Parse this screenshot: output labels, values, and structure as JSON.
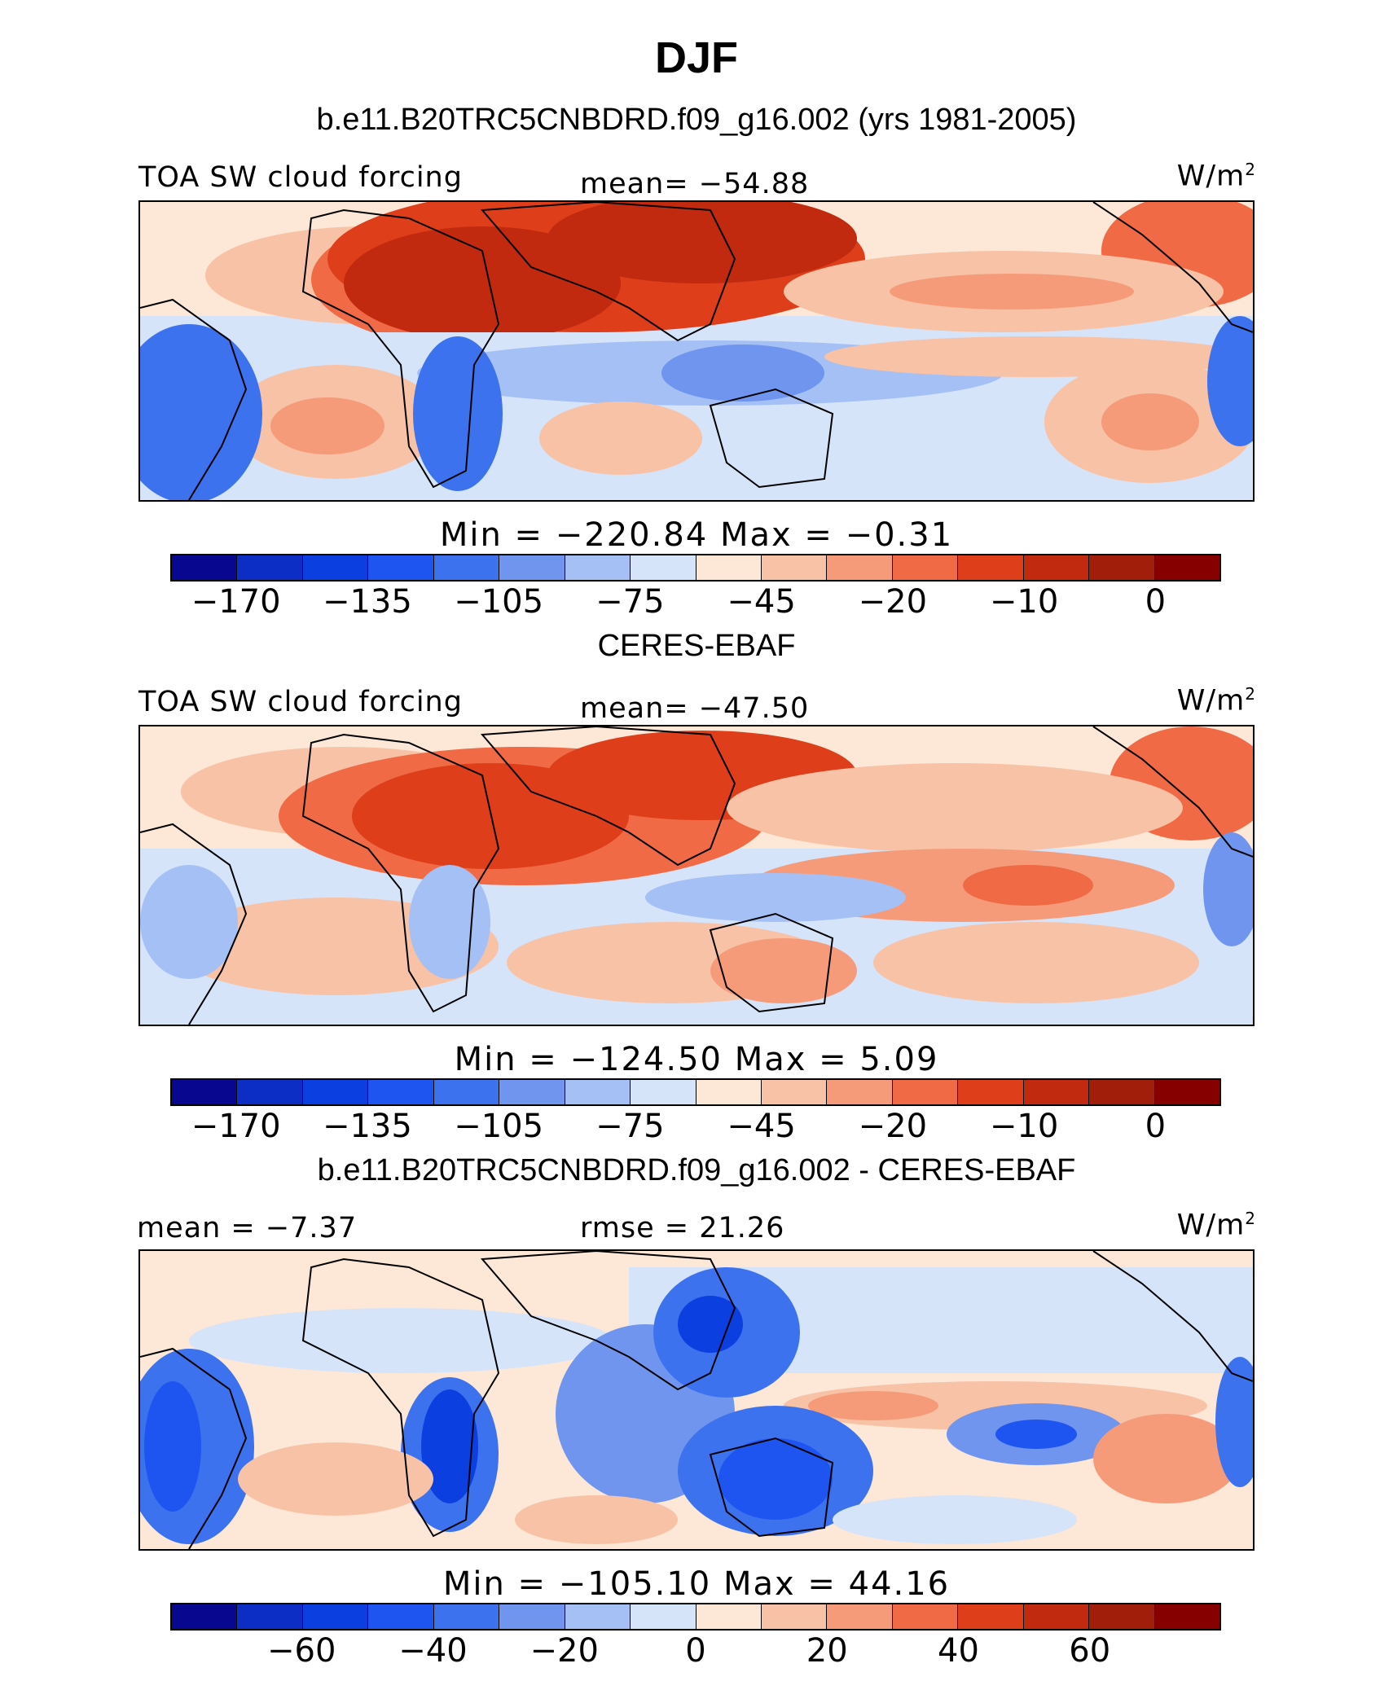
{
  "title": "DJF",
  "panels": [
    {
      "title": "b.e11.B20TRC5CNBDRD.f09_g16.002 (yrs 1981-2005)",
      "left_label": "TOA SW cloud forcing",
      "center_label": "mean= −54.88",
      "units": "W/m",
      "units_sup": "2",
      "minmax": "Min = −220.84 Max =   −0.31",
      "colorbar": {
        "colors": [
          "#08078f",
          "#0d2ec4",
          "#0c3fe0",
          "#1e55f0",
          "#3d72ee",
          "#6f95ee",
          "#a5c0f5",
          "#d6e4fa",
          "#fde7d6",
          "#f8c2a6",
          "#f59b7a",
          "#ef6a45",
          "#de3e1a",
          "#c22a10",
          "#a11e0a",
          "#870000"
        ],
        "ticks": [
          {
            "label": "−170",
            "boundary": 1
          },
          {
            "label": "−135",
            "boundary": 3
          },
          {
            "label": "−105",
            "boundary": 5
          },
          {
            "label": "−75",
            "boundary": 7
          },
          {
            "label": "−45",
            "boundary": 9
          },
          {
            "label": "−20",
            "boundary": 11
          },
          {
            "label": "−10",
            "boundary": 13
          },
          {
            "label": "0",
            "boundary": 15
          }
        ]
      }
    },
    {
      "title": "CERES-EBAF",
      "left_label": "TOA SW cloud forcing",
      "center_label": "mean= −47.50",
      "units": "W/m",
      "units_sup": "2",
      "minmax": "Min = −124.50 Max =    5.09",
      "colorbar": {
        "colors": [
          "#08078f",
          "#0d2ec4",
          "#0c3fe0",
          "#1e55f0",
          "#3d72ee",
          "#6f95ee",
          "#a5c0f5",
          "#d6e4fa",
          "#fde7d6",
          "#f8c2a6",
          "#f59b7a",
          "#ef6a45",
          "#de3e1a",
          "#c22a10",
          "#a11e0a",
          "#870000"
        ],
        "ticks": [
          {
            "label": "−170",
            "boundary": 1
          },
          {
            "label": "−135",
            "boundary": 3
          },
          {
            "label": "−105",
            "boundary": 5
          },
          {
            "label": "−75",
            "boundary": 7
          },
          {
            "label": "−45",
            "boundary": 9
          },
          {
            "label": "−20",
            "boundary": 11
          },
          {
            "label": "−10",
            "boundary": 13
          },
          {
            "label": "0",
            "boundary": 15
          }
        ]
      }
    },
    {
      "title": "b.e11.B20TRC5CNBDRD.f09_g16.002 - CERES-EBAF",
      "left_label": "mean =  −7.37",
      "center_label": "rmse =  21.26",
      "units": "W/m",
      "units_sup": "2",
      "minmax": "Min = −105.10 Max =  44.16",
      "colorbar": {
        "colors": [
          "#08078f",
          "#0d2ec4",
          "#0c3fe0",
          "#1e55f0",
          "#3d72ee",
          "#6f95ee",
          "#a5c0f5",
          "#d6e4fa",
          "#fde7d6",
          "#f8c2a6",
          "#f59b7a",
          "#ef6a45",
          "#de3e1a",
          "#c22a10",
          "#a11e0a",
          "#870000"
        ],
        "ticks": [
          {
            "label": "−60",
            "boundary": 2
          },
          {
            "label": "−40",
            "boundary": 4
          },
          {
            "label": "−20",
            "boundary": 6
          },
          {
            "label": "0",
            "boundary": 8
          },
          {
            "label": "20",
            "boundary": 10
          },
          {
            "label": "40",
            "boundary": 12
          },
          {
            "label": "60",
            "boundary": 14
          }
        ]
      }
    }
  ]
}
